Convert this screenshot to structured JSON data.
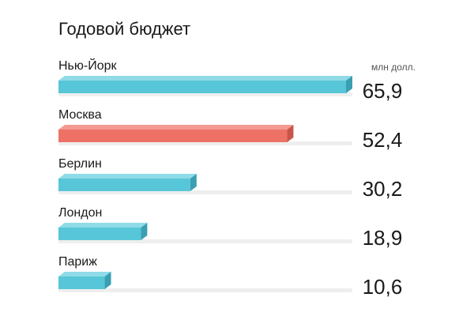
{
  "chart_data": {
    "type": "bar",
    "title": "Годовой бюджет",
    "unit": "млн долл.",
    "categories": [
      "Нью-Йорк",
      "Москва",
      "Берлин",
      "Лондон",
      "Париж"
    ],
    "values": [
      65.9,
      52.4,
      30.2,
      18.9,
      10.6
    ],
    "value_labels": [
      "65,9",
      "52,4",
      "30,2",
      "18,9",
      "10,6"
    ],
    "xlim": [
      0,
      65.9
    ],
    "colors": {
      "default": "#56c6d8",
      "default_dark": "#3a9fb1",
      "default_light": "#8fdbe7",
      "highlight": "#ee7166",
      "highlight_dark": "#c9544a",
      "highlight_light": "#f49a92",
      "track": "#eeeeee"
    },
    "highlight_index": 1,
    "legend": "none",
    "grid": false
  }
}
